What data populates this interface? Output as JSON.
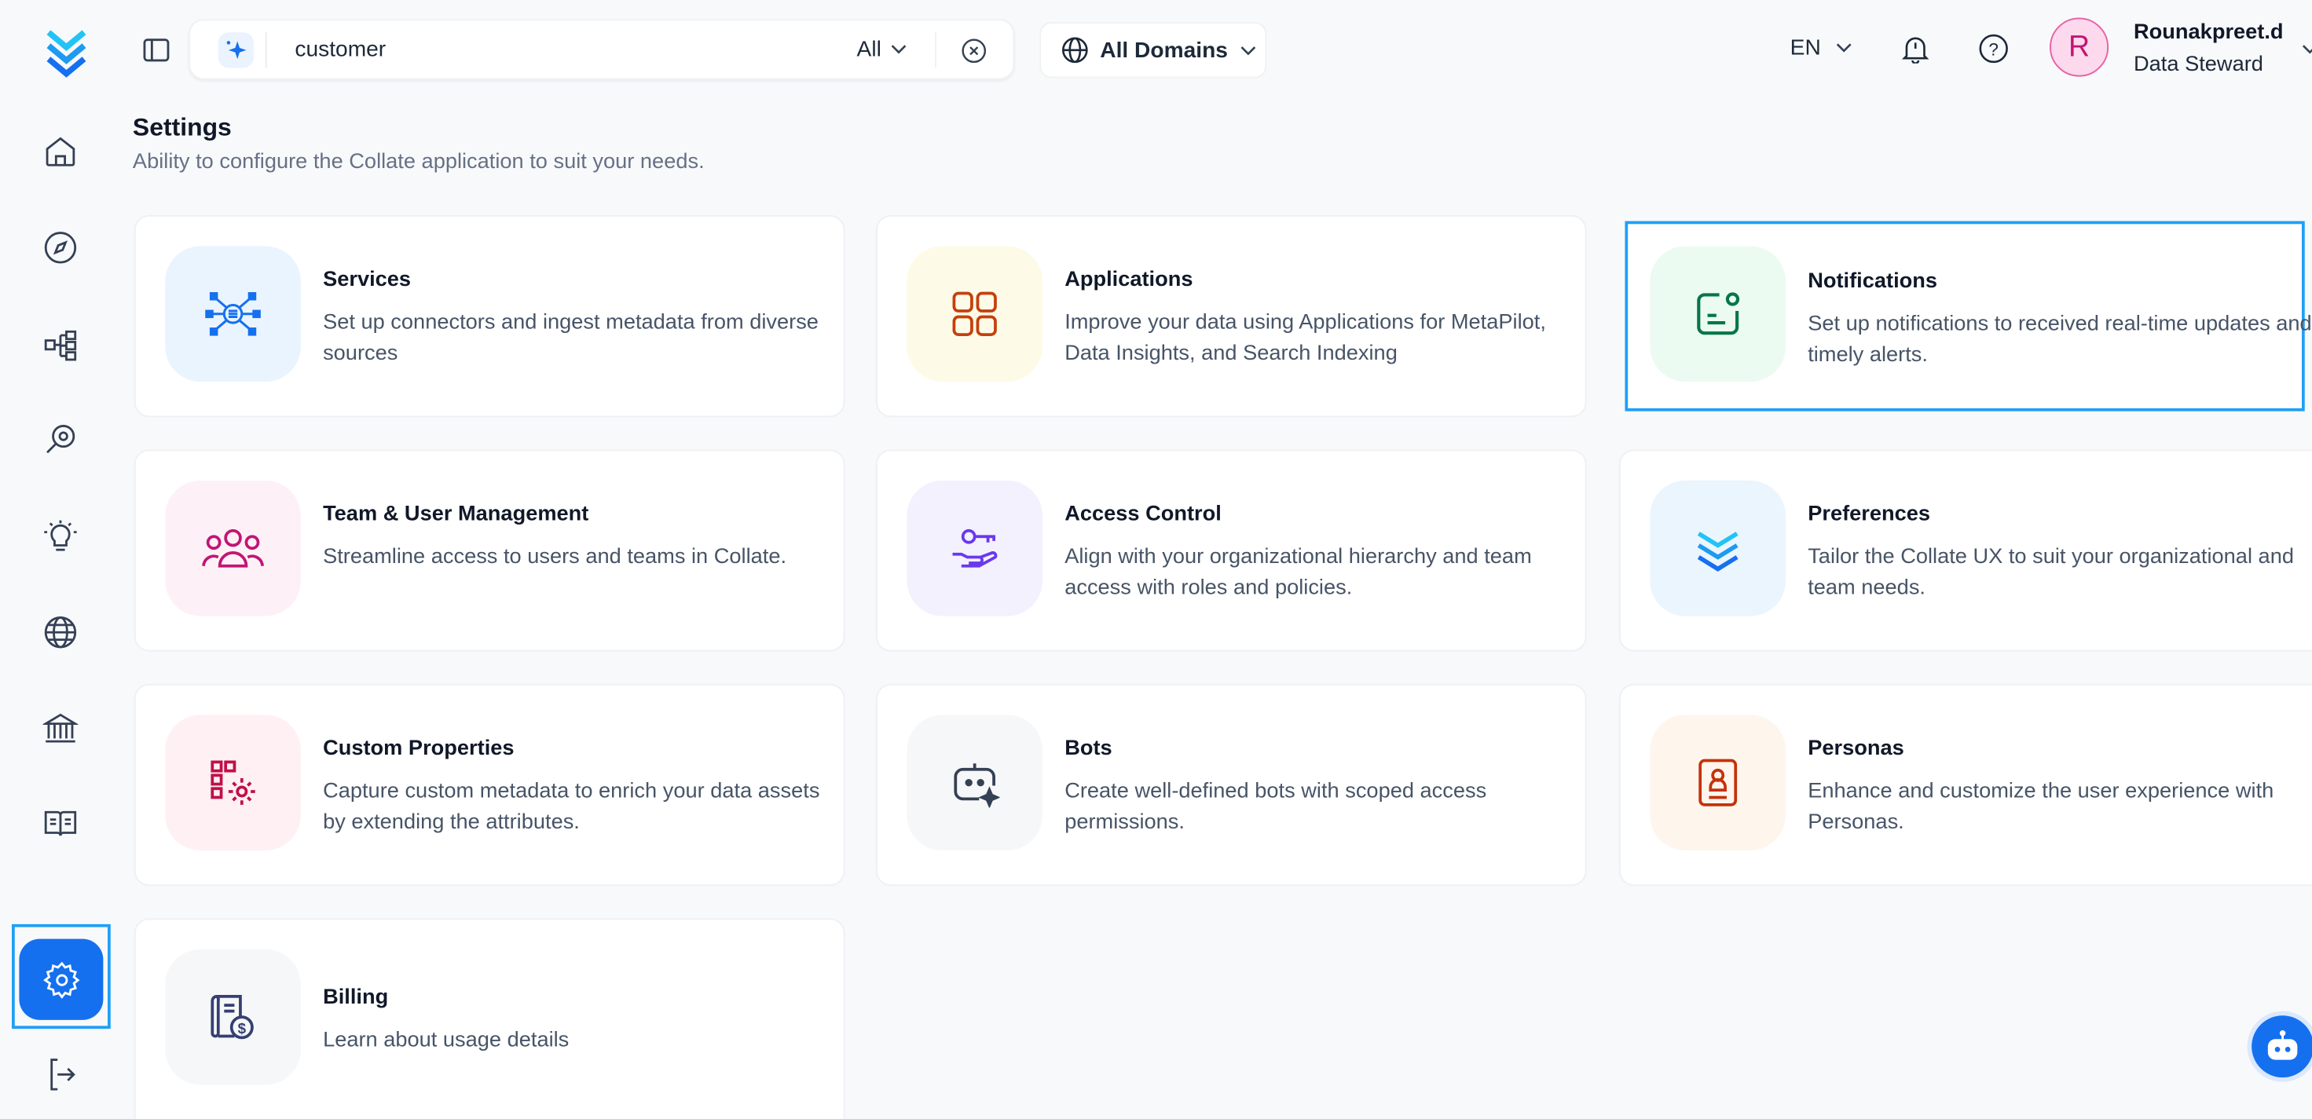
{
  "header": {
    "search": {
      "value": "customer",
      "scope": "All"
    },
    "domain": "All Domains",
    "language": "EN",
    "user": {
      "initial": "R",
      "name": "Rounakpreet.d",
      "role": "Data Steward"
    }
  },
  "sidebar": {
    "items": [
      "home",
      "explore",
      "lineage",
      "observability",
      "insights",
      "domains",
      "governance",
      "glossary",
      "settings"
    ],
    "active": "settings"
  },
  "page": {
    "title": "Settings",
    "subtitle": "Ability to configure the Collate application to suit your needs."
  },
  "cards": [
    {
      "title": "Services",
      "description": "Set up connectors and ingest metadata from diverse sources",
      "icon": "services-icon",
      "color": "#1570ef",
      "bg": "#eaf4fe"
    },
    {
      "title": "Applications",
      "description": "Improve your data using Applications for MetaPilot, Data Insights, and Search Indexing",
      "icon": "applications-icon",
      "color": "#c4400c",
      "bg": "#fefae8"
    },
    {
      "title": "Notifications",
      "description": "Set up notifications to received real-time updates and timely alerts.",
      "icon": "notifications-icon",
      "color": "#067647",
      "bg": "#ebfbf1"
    },
    {
      "title": "Team & User Management",
      "description": "Streamline access to users and teams in Collate.",
      "icon": "team-icon",
      "color": "#c11574",
      "bg": "#fdf1f7"
    },
    {
      "title": "Access Control",
      "description": "Align with your organizational hierarchy and team access with roles and policies.",
      "icon": "access-control-icon",
      "color": "#6938ef",
      "bg": "#f3f1fe"
    },
    {
      "title": "Preferences",
      "description": "Tailor the Collate UX to suit your organizational and team needs.",
      "icon": "preferences-icon",
      "color": "#0b8fec",
      "bg": "#ebf5fe"
    },
    {
      "title": "Custom Properties",
      "description": "Capture custom metadata to enrich your data assets by extending the attributes.",
      "icon": "custom-properties-icon",
      "color": "#c01048",
      "bg": "#fef0f3"
    },
    {
      "title": "Bots",
      "description": "Create well-defined bots with scoped access permissions.",
      "icon": "bot-icon",
      "color": "#344054",
      "bg": "#f6f7f8"
    },
    {
      "title": "Personas",
      "description": "Enhance and customize the user experience with Personas.",
      "icon": "persona-icon",
      "color": "#c4320a",
      "bg": "#fef5ed"
    },
    {
      "title": "Billing",
      "description": "Learn about usage details",
      "icon": "billing-icon",
      "color": "#363f72",
      "bg": "#f6f7f9"
    }
  ],
  "colors": {
    "accent": "#1570ef",
    "highlight": "#1ea0f5"
  }
}
